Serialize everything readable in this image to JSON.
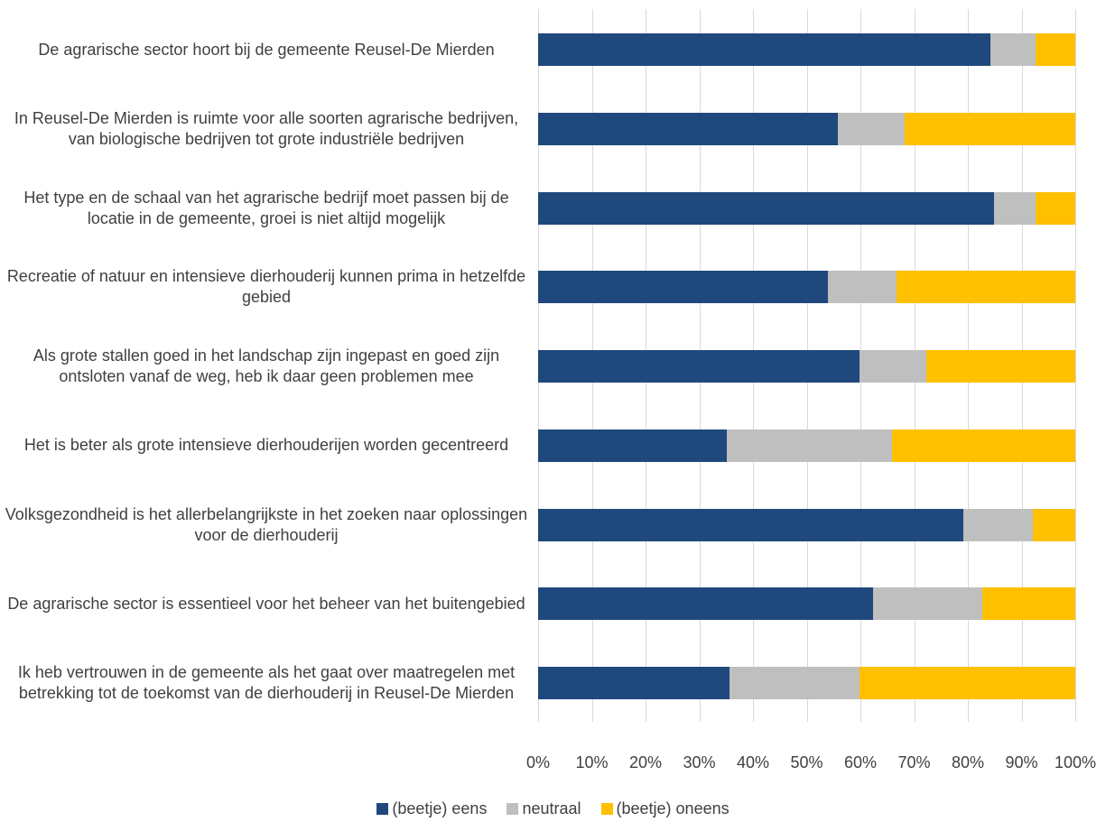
{
  "chart_data": {
    "type": "stacked-bar-horizontal",
    "categories": [
      "De agrarische sector hoort bij de gemeente Reusel-De Mierden",
      "In Reusel-De Mierden is ruimte voor alle soorten agrarische bedrijven, van biologische bedrijven tot grote industriële bedrijven",
      "Het type en de schaal van het agrarische bedrijf moet passen bij de locatie in de gemeente, groei is niet altijd mogelijk",
      "Recreatie of natuur en intensieve dierhouderij kunnen prima in hetzelfde gebied",
      "Als grote stallen goed in het landschap zijn ingepast en goed zijn ontsloten vanaf de weg, heb ik daar geen problemen mee",
      "Het is beter als grote intensieve dierhouderijen worden gecentreerd",
      "Volksgezondheid is het allerbelangrijkste in het zoeken naar oplossingen voor de dierhouderij",
      "De agrarische sector is essentieel voor het beheer van het buitengebied",
      "Ik heb vertrouwen in de gemeente als het gaat over maatregelen met betrekking tot de toekomst van de dierhouderij in Reusel-De Mierden"
    ],
    "series": [
      {
        "name": "(beetje) eens",
        "color": "#1f497d",
        "values": [
          84.2,
          55.8,
          84.9,
          53.9,
          59.8,
          35.1,
          79.2,
          62.4,
          35.6
        ]
      },
      {
        "name": "neutraal",
        "color": "#bfbfbf",
        "values": [
          8.4,
          12.4,
          7.7,
          12.8,
          12.5,
          30.8,
          12.9,
          20.3,
          24.2
        ]
      },
      {
        "name": "(beetje) oneens",
        "color": "#ffc000",
        "values": [
          7.4,
          31.8,
          7.4,
          33.3,
          27.7,
          34.1,
          7.9,
          17.3,
          40.2
        ]
      }
    ],
    "xlim": [
      0,
      100
    ],
    "xticks": [
      {
        "value": 0,
        "label": "0%"
      },
      {
        "value": 10,
        "label": "10%"
      },
      {
        "value": 20,
        "label": "20%"
      },
      {
        "value": 30,
        "label": "30%"
      },
      {
        "value": 40,
        "label": "40%"
      },
      {
        "value": 50,
        "label": "50%"
      },
      {
        "value": 60,
        "label": "60%"
      },
      {
        "value": 70,
        "label": "70%"
      },
      {
        "value": 80,
        "label": "80%"
      },
      {
        "value": 90,
        "label": "90%"
      },
      {
        "value": 100,
        "label": "100%"
      }
    ],
    "grid": true,
    "legend": "bottom"
  }
}
